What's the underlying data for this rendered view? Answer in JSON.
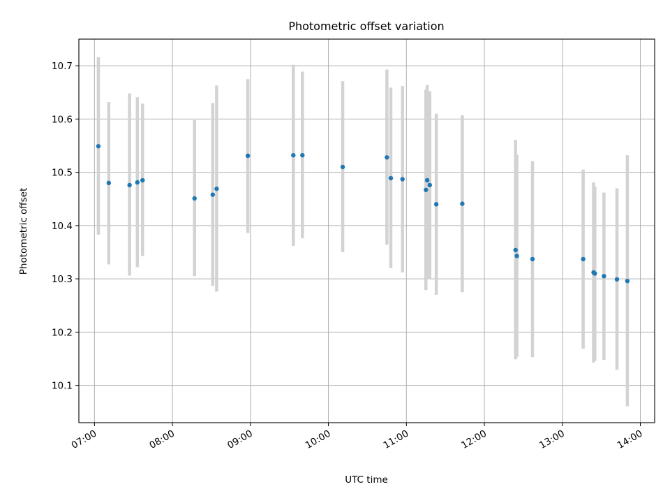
{
  "chart_data": {
    "type": "scatter",
    "title": "Photometric offset variation",
    "xlabel": "UTC time",
    "ylabel": "Photometric offset",
    "xlim": [
      "06:48",
      "14:11"
    ],
    "ylim": [
      10.03,
      10.75
    ],
    "grid": true,
    "x_ticks": [
      "07:00",
      "08:00",
      "09:00",
      "10:00",
      "11:00",
      "12:00",
      "13:00",
      "14:00"
    ],
    "y_ticks": [
      10.1,
      10.2,
      10.3,
      10.4,
      10.5,
      10.6,
      10.7
    ],
    "points_color": "#1f77b4",
    "errorbar_color": "#d3d3d3",
    "series": [
      {
        "points": [
          {
            "x": "07:03",
            "y": 10.549,
            "lo": 10.383,
            "hi": 10.716
          },
          {
            "x": "07:11",
            "y": 10.48,
            "lo": 10.327,
            "hi": 10.632
          },
          {
            "x": "07:27",
            "y": 10.476,
            "lo": 10.306,
            "hi": 10.648
          },
          {
            "x": "07:33",
            "y": 10.481,
            "lo": 10.322,
            "hi": 10.641
          },
          {
            "x": "07:37",
            "y": 10.485,
            "lo": 10.343,
            "hi": 10.629
          },
          {
            "x": "08:17",
            "y": 10.451,
            "lo": 10.305,
            "hi": 10.598
          },
          {
            "x": "08:31",
            "y": 10.458,
            "lo": 10.287,
            "hi": 10.63
          },
          {
            "x": "08:34",
            "y": 10.469,
            "lo": 10.276,
            "hi": 10.663
          },
          {
            "x": "08:58",
            "y": 10.531,
            "lo": 10.386,
            "hi": 10.675
          },
          {
            "x": "09:33",
            "y": 10.532,
            "lo": 10.362,
            "hi": 10.702
          },
          {
            "x": "09:40",
            "y": 10.532,
            "lo": 10.376,
            "hi": 10.689
          },
          {
            "x": "10:11",
            "y": 10.51,
            "lo": 10.35,
            "hi": 10.671
          },
          {
            "x": "10:45",
            "y": 10.528,
            "lo": 10.364,
            "hi": 10.693
          },
          {
            "x": "10:48",
            "y": 10.489,
            "lo": 10.32,
            "hi": 10.659
          },
          {
            "x": "10:57",
            "y": 10.487,
            "lo": 10.312,
            "hi": 10.662
          },
          {
            "x": "11:15",
            "y": 10.467,
            "lo": 10.279,
            "hi": 10.655
          },
          {
            "x": "11:16",
            "y": 10.485,
            "lo": 10.3,
            "hi": 10.664
          },
          {
            "x": "11:18",
            "y": 10.476,
            "lo": 10.3,
            "hi": 10.652
          },
          {
            "x": "11:23",
            "y": 10.44,
            "lo": 10.27,
            "hi": 10.61
          },
          {
            "x": "11:43",
            "y": 10.441,
            "lo": 10.275,
            "hi": 10.607
          },
          {
            "x": "12:24",
            "y": 10.354,
            "lo": 10.149,
            "hi": 10.561
          },
          {
            "x": "12:25",
            "y": 10.343,
            "lo": 10.153,
            "hi": 10.533
          },
          {
            "x": "12:37",
            "y": 10.337,
            "lo": 10.153,
            "hi": 10.521
          },
          {
            "x": "13:16",
            "y": 10.337,
            "lo": 10.169,
            "hi": 10.505
          },
          {
            "x": "13:24",
            "y": 10.312,
            "lo": 10.143,
            "hi": 10.481
          },
          {
            "x": "13:25",
            "y": 10.31,
            "lo": 10.146,
            "hi": 10.473
          },
          {
            "x": "13:32",
            "y": 10.305,
            "lo": 10.148,
            "hi": 10.462
          },
          {
            "x": "13:42",
            "y": 10.299,
            "lo": 10.129,
            "hi": 10.47
          },
          {
            "x": "13:50",
            "y": 10.296,
            "lo": 10.061,
            "hi": 10.532
          }
        ]
      }
    ]
  }
}
